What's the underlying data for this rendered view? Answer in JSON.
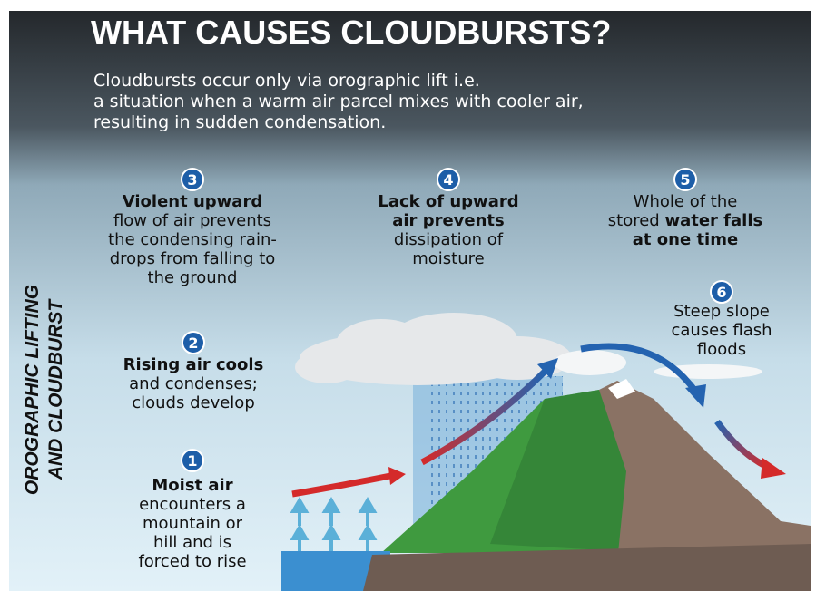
{
  "title": "WHAT CAUSES CLOUDBURSTS?",
  "subtitle": [
    "Cloudbursts occur only via orographic lift i.e.",
    "a situation when a warm air parcel mixes with cooler air,",
    "resulting in sudden condensation."
  ],
  "side_label": [
    "OROGRAPHIC LIFTING",
    "AND CLOUDBURST"
  ],
  "steps": [
    {
      "number": "1",
      "lines": [
        [
          {
            "text": "Moist air",
            "bold": true
          }
        ],
        [
          {
            "text": "encounters a",
            "bold": false
          }
        ],
        [
          {
            "text": "mountain or",
            "bold": false
          }
        ],
        [
          {
            "text": "hill and is",
            "bold": false
          }
        ],
        [
          {
            "text": "forced to rise",
            "bold": false
          }
        ]
      ]
    },
    {
      "number": "2",
      "lines": [
        [
          {
            "text": "Rising air cools",
            "bold": true
          }
        ],
        [
          {
            "text": "and condenses;",
            "bold": false
          }
        ],
        [
          {
            "text": "clouds develop",
            "bold": false
          }
        ]
      ]
    },
    {
      "number": "3",
      "lines": [
        [
          {
            "text": "Violent upward",
            "bold": true
          }
        ],
        [
          {
            "text": "flow of air prevents",
            "bold": false
          }
        ],
        [
          {
            "text": "the condensing rain-",
            "bold": false
          }
        ],
        [
          {
            "text": "drops from falling to",
            "bold": false
          }
        ],
        [
          {
            "text": "the ground",
            "bold": false
          }
        ]
      ]
    },
    {
      "number": "4",
      "lines": [
        [
          {
            "text": "Lack of upward",
            "bold": true
          }
        ],
        [
          {
            "text": "air prevents",
            "bold": true
          }
        ],
        [
          {
            "text": "dissipation of",
            "bold": false
          }
        ],
        [
          {
            "text": "moisture",
            "bold": false
          }
        ]
      ]
    },
    {
      "number": "5",
      "lines": [
        [
          {
            "text": "Whole of the",
            "bold": false
          }
        ],
        [
          {
            "text": "stored ",
            "bold": false
          },
          {
            "text": "water falls",
            "bold": true
          }
        ],
        [
          {
            "text": "at one time",
            "bold": true
          }
        ]
      ]
    },
    {
      "number": "6",
      "lines": [
        [
          {
            "text": "Steep slope",
            "bold": false
          }
        ],
        [
          {
            "text": "causes flash",
            "bold": false
          }
        ],
        [
          {
            "text": "floods",
            "bold": false
          }
        ]
      ]
    }
  ]
}
